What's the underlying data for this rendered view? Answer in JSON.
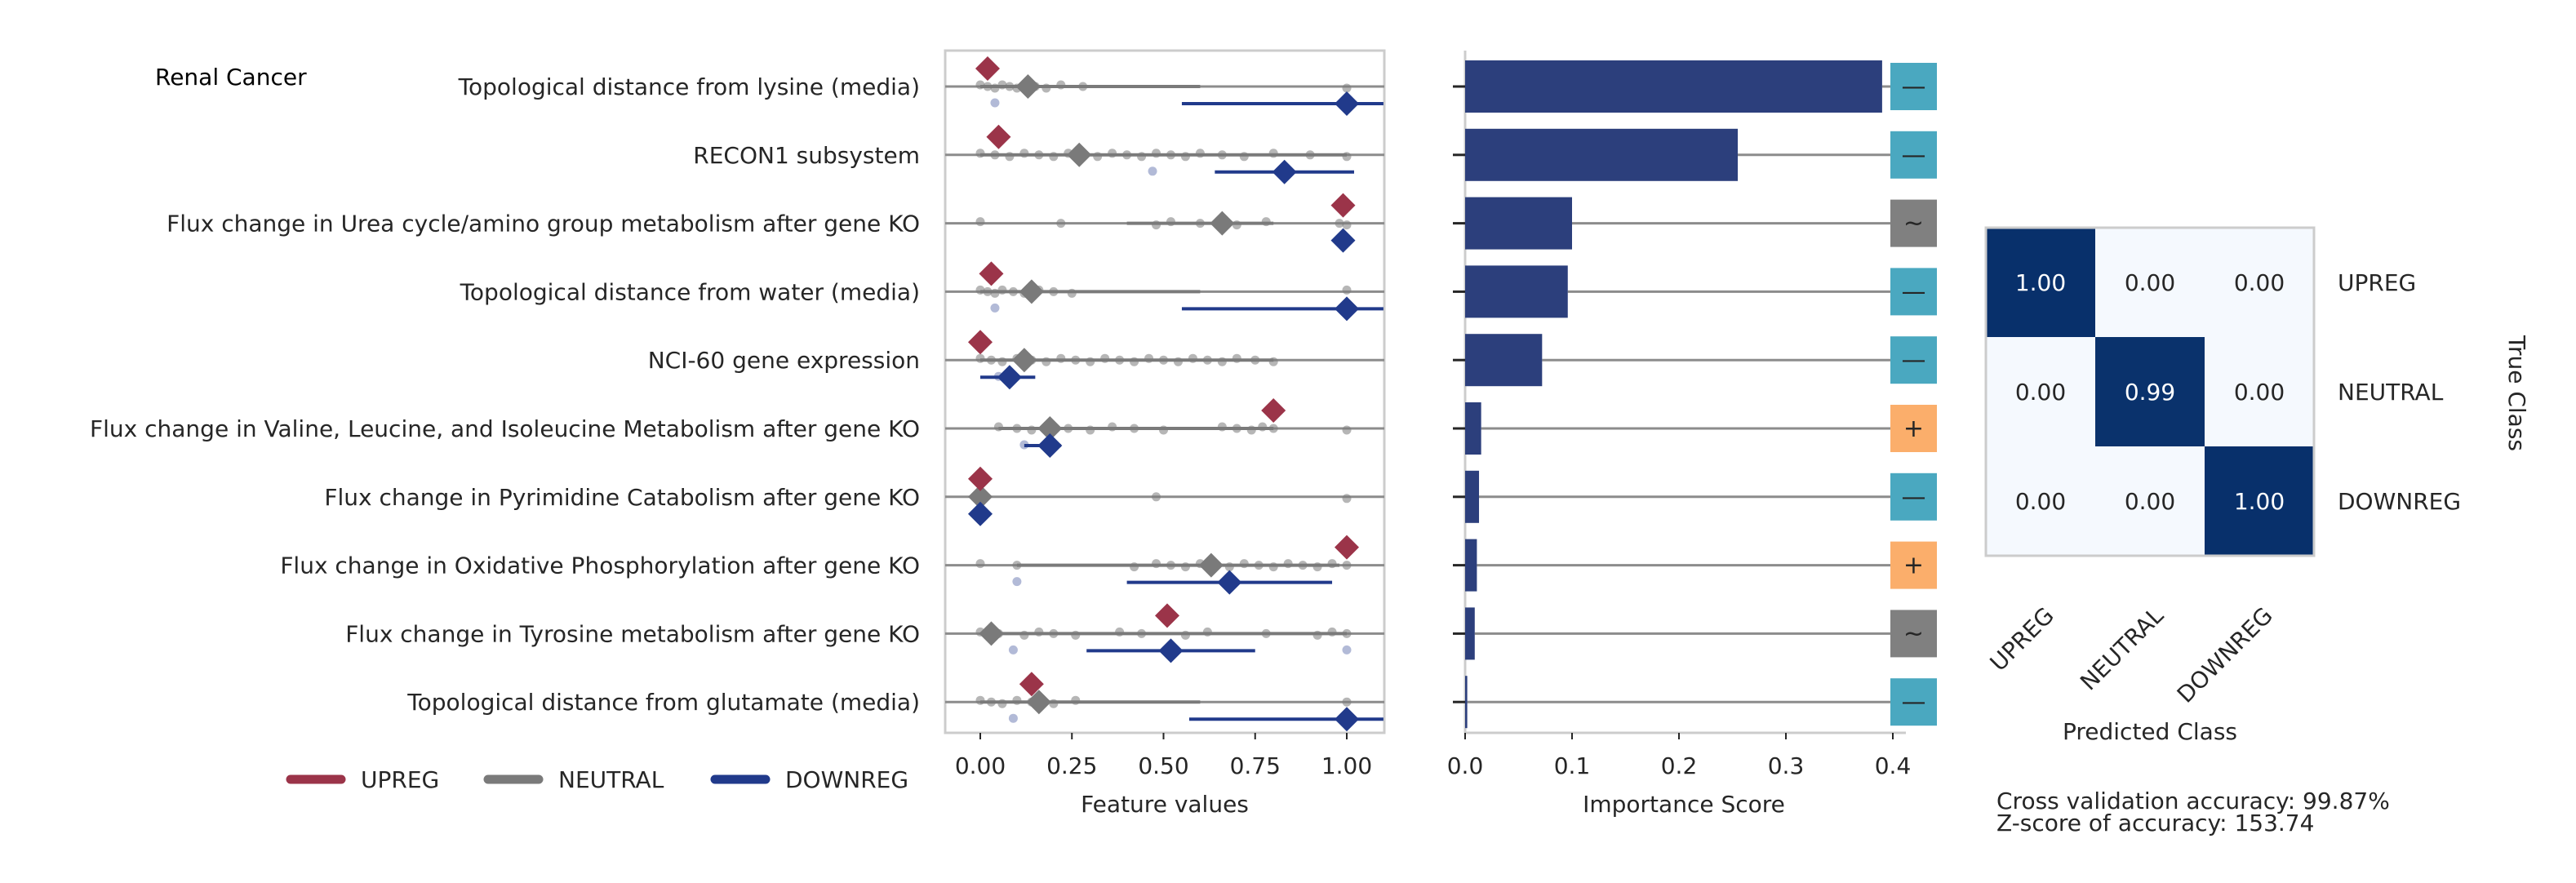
{
  "figure": {
    "title": "Renal Cancer",
    "accuracy_line": "Cross validation accuracy: 99.87%",
    "zscore_line": "Z-score of accuracy: 153.74"
  },
  "colors": {
    "upreg": "#9b3449",
    "neutral": "#7a7a7a",
    "downreg": "#213a8b",
    "importance_bar": "#2c3f7c",
    "sign_minus": "#4aa8c0",
    "sign_plus": "#fbae6b",
    "sign_tilde": "#808080",
    "cm_dark": "#08306b",
    "cm_light": "#f5f9fe"
  },
  "chart_data": [
    {
      "type": "scatter",
      "xlabel": "Feature values",
      "xlim": [
        -0.1,
        1.1
      ],
      "xticks": [
        "0.00",
        "0.25",
        "0.50",
        "0.75",
        "1.00"
      ],
      "xtick_values": [
        0,
        0.25,
        0.5,
        0.75,
        1.0
      ],
      "legend": [
        "UPREG",
        "NEUTRAL",
        "DOWNREG"
      ],
      "legend_placement": "bottom-left",
      "features": [
        {
          "label": "Topological distance from lysine (media)",
          "upreg_mean": 0.02,
          "neutral_mean": 0.13,
          "downreg_mean": 1.0,
          "neutral_range": [
            0.0,
            0.6
          ],
          "downreg_range": [
            0.55,
            1.1
          ],
          "neutral_points": [
            0.0,
            0.02,
            0.04,
            0.06,
            0.08,
            0.1,
            0.12,
            0.15,
            0.18,
            0.22,
            0.28,
            1.0
          ],
          "downreg_points": [
            0.04
          ]
        },
        {
          "label": "RECON1 subsystem",
          "upreg_mean": 0.05,
          "neutral_mean": 0.27,
          "downreg_mean": 0.83,
          "neutral_range": [
            0.0,
            1.0
          ],
          "downreg_range": [
            0.64,
            1.02
          ],
          "neutral_points": [
            0.0,
            0.04,
            0.08,
            0.12,
            0.16,
            0.2,
            0.24,
            0.28,
            0.32,
            0.36,
            0.4,
            0.44,
            0.48,
            0.52,
            0.56,
            0.6,
            0.66,
            0.72,
            0.8,
            0.9,
            1.0
          ],
          "downreg_points": [
            0.47
          ]
        },
        {
          "label": "Flux change in Urea cycle/amino group metabolism after gene KO",
          "upreg_mean": 0.99,
          "neutral_mean": 0.66,
          "downreg_mean": 0.99,
          "neutral_range": [
            0.4,
            0.8
          ],
          "downreg_range": [
            0.98,
            1.0
          ],
          "neutral_points": [
            0.0,
            0.22,
            0.48,
            0.52,
            0.6,
            0.7,
            0.78,
            0.98,
            1.0
          ],
          "downreg_points": [
            0.99
          ]
        },
        {
          "label": "Topological distance from water (media)",
          "upreg_mean": 0.03,
          "neutral_mean": 0.14,
          "downreg_mean": 1.0,
          "neutral_range": [
            0.0,
            0.6
          ],
          "downreg_range": [
            0.55,
            1.1
          ],
          "neutral_points": [
            0.0,
            0.02,
            0.04,
            0.06,
            0.09,
            0.12,
            0.16,
            0.2,
            0.25,
            1.0
          ],
          "downreg_points": [
            0.04
          ]
        },
        {
          "label": "NCI-60 gene expression",
          "upreg_mean": 0.0,
          "neutral_mean": 0.12,
          "downreg_mean": 0.08,
          "neutral_range": [
            0.0,
            0.8
          ],
          "downreg_range": [
            0.0,
            0.15
          ],
          "neutral_points": [
            0.0,
            0.03,
            0.06,
            0.1,
            0.14,
            0.18,
            0.22,
            0.26,
            0.3,
            0.34,
            0.38,
            0.42,
            0.46,
            0.5,
            0.54,
            0.58,
            0.62,
            0.66,
            0.7,
            0.75,
            0.8
          ],
          "downreg_points": [
            0.05
          ]
        },
        {
          "label": "Flux change in Valine, Leucine, and Isoleucine Metabolism after gene KO",
          "upreg_mean": 0.8,
          "neutral_mean": 0.19,
          "downreg_mean": 0.19,
          "neutral_range": [
            0.05,
            0.8
          ],
          "downreg_range": [
            0.12,
            0.22
          ],
          "neutral_points": [
            0.05,
            0.1,
            0.14,
            0.2,
            0.24,
            0.3,
            0.36,
            0.42,
            0.5,
            0.66,
            0.7,
            0.74,
            0.77,
            0.8,
            1.0
          ],
          "downreg_points": [
            0.12,
            0.2
          ]
        },
        {
          "label": "Flux change in Pyrimidine Catabolism after gene KO",
          "upreg_mean": 0.0,
          "neutral_mean": 0.0,
          "downreg_mean": 0.0,
          "neutral_range": [
            0.0,
            0.02
          ],
          "downreg_range": [
            0.0,
            0.01
          ],
          "neutral_points": [
            0.0,
            0.48,
            1.0
          ],
          "downreg_points": [
            0.0
          ]
        },
        {
          "label": "Flux change in Oxidative Phosphorylation after gene KO",
          "upreg_mean": 1.0,
          "neutral_mean": 0.63,
          "downreg_mean": 0.68,
          "neutral_range": [
            0.1,
            0.98
          ],
          "downreg_range": [
            0.4,
            0.96
          ],
          "neutral_points": [
            0.0,
            0.1,
            0.42,
            0.48,
            0.52,
            0.56,
            0.6,
            0.64,
            0.68,
            0.72,
            0.76,
            0.8,
            0.84,
            0.88,
            0.92,
            0.96,
            1.0
          ],
          "downreg_points": [
            0.1
          ]
        },
        {
          "label": "Flux change in Tyrosine metabolism after gene KO",
          "upreg_mean": 0.51,
          "neutral_mean": 0.03,
          "downreg_mean": 0.52,
          "neutral_range": [
            0.0,
            1.0
          ],
          "downreg_range": [
            0.29,
            0.75
          ],
          "neutral_points": [
            0.0,
            0.05,
            0.12,
            0.16,
            0.2,
            0.26,
            0.38,
            0.44,
            0.56,
            0.62,
            0.78,
            0.92,
            0.96,
            1.0
          ],
          "downreg_points": [
            0.09,
            1.0
          ]
        },
        {
          "label": "Topological distance from glutamate (media)",
          "upreg_mean": 0.14,
          "neutral_mean": 0.16,
          "downreg_mean": 1.0,
          "neutral_range": [
            0.0,
            0.6
          ],
          "downreg_range": [
            0.57,
            1.1
          ],
          "neutral_points": [
            0.0,
            0.03,
            0.06,
            0.1,
            0.14,
            0.2,
            0.26,
            1.0
          ],
          "downreg_points": [
            0.09
          ]
        }
      ]
    },
    {
      "type": "bar",
      "orientation": "horizontal",
      "xlabel": "Importance Score",
      "xlim": [
        0,
        0.415
      ],
      "xticks": [
        "0.0",
        "0.1",
        "0.2",
        "0.3",
        "0.4"
      ],
      "xtick_values": [
        0,
        0.1,
        0.2,
        0.3,
        0.4
      ],
      "values": [
        0.39,
        0.255,
        0.1,
        0.096,
        0.072,
        0.015,
        0.013,
        0.011,
        0.009,
        0.002
      ],
      "signs": [
        "—",
        "—",
        "~",
        "—",
        "—",
        "+",
        "—",
        "+",
        "~",
        "—"
      ],
      "sign_types": [
        "minus",
        "minus",
        "tilde",
        "minus",
        "minus",
        "plus",
        "minus",
        "plus",
        "tilde",
        "minus"
      ]
    },
    {
      "type": "heatmap",
      "xlabel": "Predicted Class",
      "ylabel": "True Class",
      "classes": [
        "UPREG",
        "NEUTRAL",
        "DOWNREG"
      ],
      "matrix": [
        [
          "1.00",
          "0.00",
          "0.00"
        ],
        [
          "0.00",
          "0.99",
          "0.00"
        ],
        [
          "0.00",
          "0.00",
          "1.00"
        ]
      ],
      "matrix_values": [
        [
          1.0,
          0.0,
          0.0
        ],
        [
          0.0,
          0.99,
          0.0
        ],
        [
          0.0,
          0.0,
          1.0
        ]
      ]
    }
  ]
}
